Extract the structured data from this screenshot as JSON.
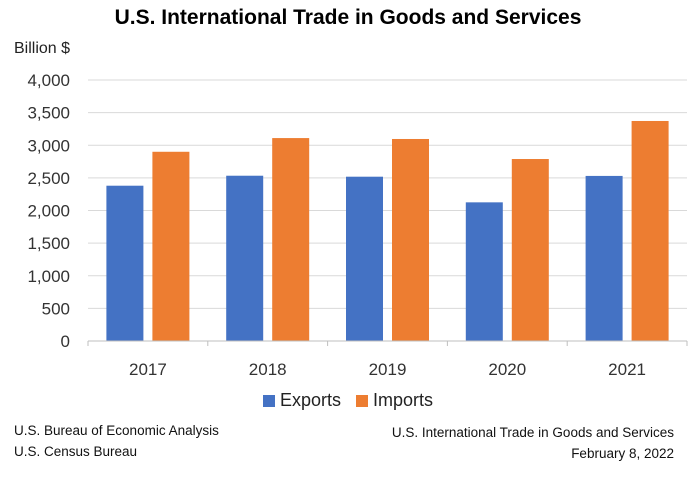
{
  "chart_data": {
    "type": "bar",
    "title": "U.S. International Trade in Goods and Services",
    "ylabel": "Billion $",
    "xlabel": "",
    "categories": [
      "2017",
      "2018",
      "2019",
      "2020",
      "2021"
    ],
    "series": [
      {
        "name": "Exports",
        "color": "#4472C4",
        "values": [
          2380,
          2533,
          2518,
          2125,
          2530
        ]
      },
      {
        "name": "Imports",
        "color": "#ED7D31",
        "values": [
          2900,
          3110,
          3096,
          2789,
          3372
        ]
      }
    ],
    "ylim": [
      0,
      4000
    ],
    "yticks": [
      0,
      500,
      1000,
      1500,
      2000,
      2500,
      3000,
      3500,
      4000
    ],
    "ytick_labels": [
      "0",
      "500",
      "1,000",
      "1,500",
      "2,000",
      "2,500",
      "3,000",
      "3,500",
      "4,000"
    ],
    "grid": true,
    "legend_position": "bottom"
  },
  "footer": {
    "source_line1": "U.S. Bureau of Economic Analysis",
    "source_line2": "U.S. Census Bureau",
    "release_title": "U.S. International Trade in Goods and Services",
    "release_date": "February 8, 2022"
  }
}
